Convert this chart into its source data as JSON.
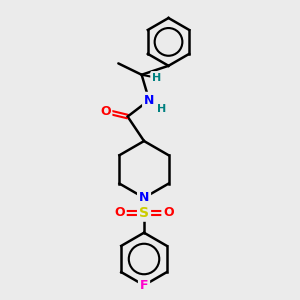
{
  "bg_color": "#ebebeb",
  "bond_color": "#000000",
  "atom_colors": {
    "O": "#ff0000",
    "N": "#0000ff",
    "S": "#cccc00",
    "F": "#ff00cc",
    "H": "#008080",
    "C": "#000000"
  },
  "figsize": [
    3.0,
    3.0
  ],
  "dpi": 100,
  "xlim": [
    0,
    10
  ],
  "ylim": [
    0,
    10
  ]
}
